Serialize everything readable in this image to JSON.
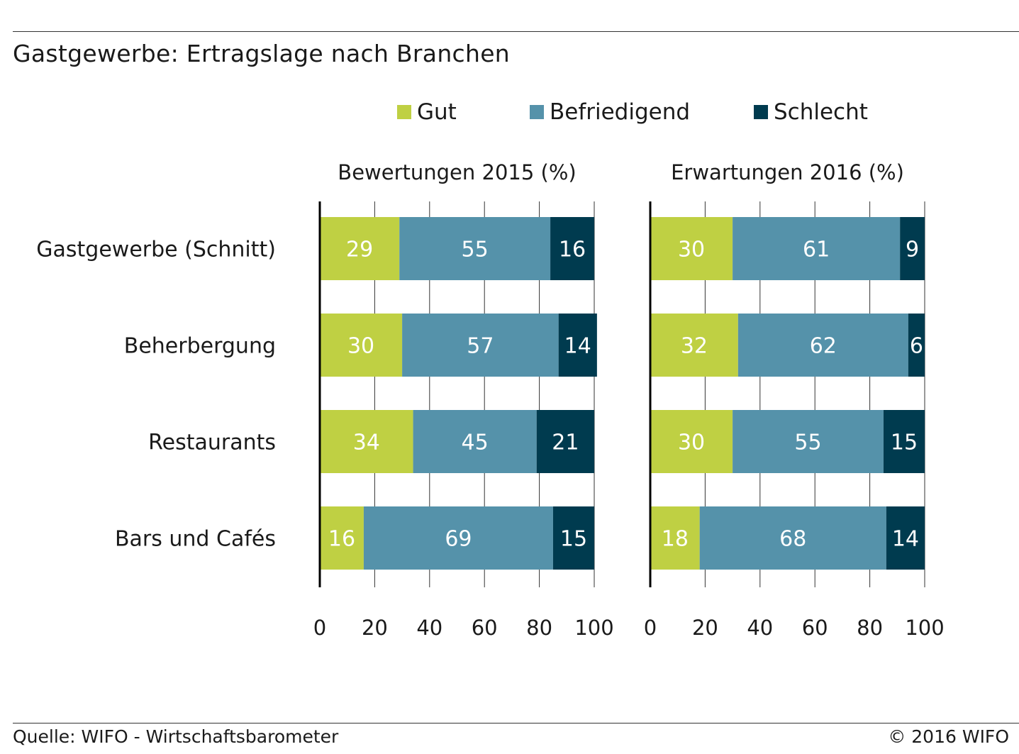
{
  "title": "Gastgewerbe: Ertragslage nach Branchen",
  "source": "Quelle: WIFO - Wirtschaftsbarometer",
  "copyright": "© 2016 WIFO",
  "colors": {
    "gut": "#bfd043",
    "befriedigend": "#5592aa",
    "schlecht": "#003b4f"
  },
  "legend": [
    {
      "label": "Gut",
      "color": "#bfd043"
    },
    {
      "label": "Befriedigend",
      "color": "#5592aa"
    },
    {
      "label": "Schlecht",
      "color": "#003b4f"
    }
  ],
  "chart_data": {
    "type": "bar",
    "orientation": "horizontal",
    "stacked": true,
    "categories": [
      "Gastgewerbe (Schnitt)",
      "Beherbergung",
      "Restaurants",
      "Bars und Cafés"
    ],
    "xlim": [
      0,
      100
    ],
    "xticks": [
      "0",
      "20",
      "40",
      "60",
      "80",
      "100"
    ],
    "grid": "vertical",
    "legend_position": "top",
    "panels": [
      {
        "title": "Bewertungen 2015 (%)",
        "series": [
          {
            "name": "Gut",
            "values": [
              29,
              30,
              34,
              16
            ]
          },
          {
            "name": "Befriedigend",
            "values": [
              55,
              57,
              45,
              69
            ]
          },
          {
            "name": "Schlecht",
            "values": [
              16,
              14,
              21,
              15
            ]
          }
        ]
      },
      {
        "title": "Erwartungen 2016 (%)",
        "series": [
          {
            "name": "Gut",
            "values": [
              30,
              32,
              30,
              18
            ]
          },
          {
            "name": "Befriedigend",
            "values": [
              61,
              62,
              55,
              68
            ]
          },
          {
            "name": "Schlecht",
            "values": [
              9,
              6,
              15,
              14
            ]
          }
        ]
      }
    ]
  }
}
